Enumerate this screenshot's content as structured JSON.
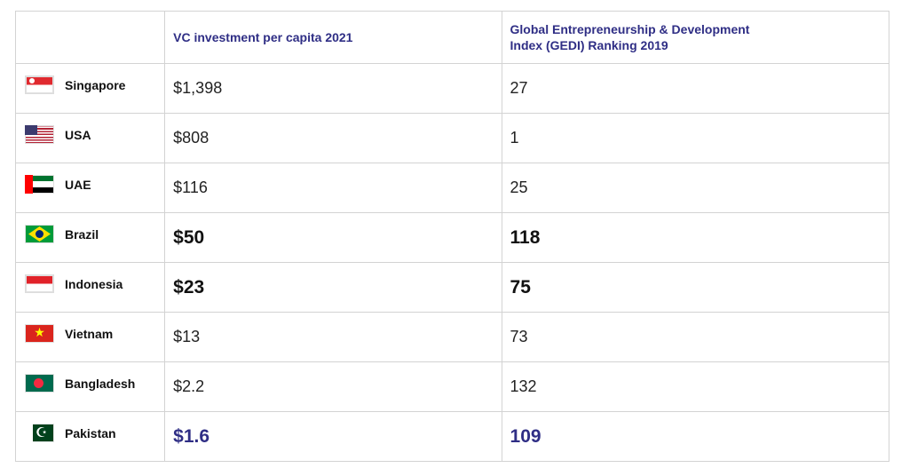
{
  "table": {
    "headers": {
      "country": "",
      "vc": "VC investment per capita 2021",
      "gedi": "Global Entrepreneurship & Development Index (GEDI) Ranking 2019"
    },
    "rows": [
      {
        "country": "Singapore",
        "flag_icon": "singapore-flag-icon",
        "vc": "$1,398",
        "gedi": "27",
        "style": "normal"
      },
      {
        "country": "USA",
        "flag_icon": "usa-flag-icon",
        "vc": "$808",
        "gedi": "1",
        "style": "normal"
      },
      {
        "country": "UAE",
        "flag_icon": "uae-flag-icon",
        "vc": "$116",
        "gedi": "25",
        "style": "normal"
      },
      {
        "country": "Brazil",
        "flag_icon": "brazil-flag-icon",
        "vc": "$50",
        "gedi": "118",
        "style": "bold"
      },
      {
        "country": "Indonesia",
        "flag_icon": "indonesia-flag-icon",
        "vc": "$23",
        "gedi": "75",
        "style": "bold"
      },
      {
        "country": "Vietnam",
        "flag_icon": "vietnam-flag-icon",
        "vc": "$13",
        "gedi": "73",
        "style": "normal"
      },
      {
        "country": "Bangladesh",
        "flag_icon": "bangladesh-flag-icon",
        "vc": "$2.2",
        "gedi": "132",
        "style": "normal"
      },
      {
        "country": "Pakistan",
        "flag_icon": "pakistan-flag-icon",
        "vc": "$1.6",
        "gedi": "109",
        "style": "bold-accent"
      }
    ]
  },
  "colors": {
    "header_text": "#2f2e85",
    "highlight_text": "#2f2e85",
    "border": "#d3d3d3"
  }
}
